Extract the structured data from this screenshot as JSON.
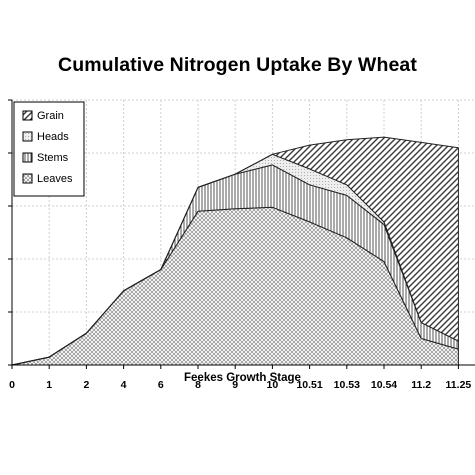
{
  "chart_data": {
    "type": "area",
    "stacked": true,
    "title": "Cumulative Nitrogen Uptake By Wheat",
    "xlabel": "Feekes Growth Stage",
    "ylabel": "",
    "categories": [
      "0",
      "1",
      "2",
      "4",
      "6",
      "8",
      "9",
      "10",
      "10.51",
      "10.53",
      "10.54",
      "11.2",
      "11.25"
    ],
    "ylim": [
      0,
      100
    ],
    "grid": true,
    "legend_position": "top-left",
    "series": [
      {
        "name": "Leaves",
        "pattern": "dots",
        "values": [
          0,
          3,
          12,
          28,
          36,
          58,
          59,
          59.5,
          54,
          48,
          39,
          10,
          6
        ]
      },
      {
        "name": "Stems",
        "pattern": "vertical-lines",
        "values": [
          0,
          0,
          0,
          0,
          0,
          9,
          13,
          16,
          14,
          16,
          14,
          6,
          3
        ]
      },
      {
        "name": "Heads",
        "pattern": "light",
        "values": [
          0,
          0,
          0,
          0,
          0,
          0,
          0,
          4,
          6,
          4,
          1,
          0,
          0
        ]
      },
      {
        "name": "Grain",
        "pattern": "diagonal",
        "values": [
          0,
          0,
          0,
          0,
          0,
          0,
          0,
          0,
          9,
          17,
          32,
          68,
          73
        ]
      }
    ]
  }
}
